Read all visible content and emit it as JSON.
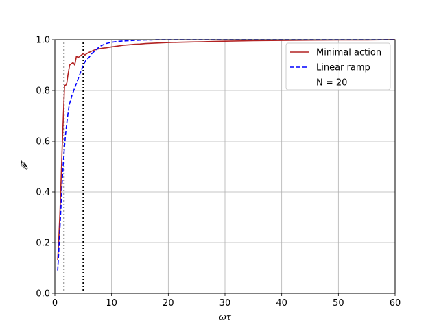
{
  "chart_data": {
    "type": "line",
    "xlabel": "ωτ",
    "ylabel": "𝓕",
    "xlim": [
      0,
      60
    ],
    "ylim": [
      0,
      1.0
    ],
    "xticks": [
      0,
      10,
      20,
      30,
      40,
      50,
      60
    ],
    "yticks": [
      0.0,
      0.2,
      0.4,
      0.6,
      0.8,
      1.0
    ],
    "xtick_labels": [
      "0",
      "10",
      "20",
      "30",
      "40",
      "50",
      "60"
    ],
    "ytick_labels": [
      "0.0",
      "0.2",
      "0.4",
      "0.6",
      "0.8",
      "1.0"
    ],
    "grid": true,
    "legend_placement": "upper right",
    "legend": {
      "entries": [
        "Minimal action",
        "Linear ramp",
        "N = 20"
      ]
    },
    "series": [
      {
        "name": "Minimal action",
        "color": "#b22222",
        "style": "solid",
        "x": [
          0.5,
          0.7,
          0.9,
          1.1,
          1.3,
          1.5,
          1.7,
          1.9,
          2.1,
          2.3,
          2.6,
          2.9,
          3.2,
          3.5,
          3.8,
          4.1,
          4.4,
          4.7,
          5.0,
          5.3,
          5.6,
          6.0,
          6.5,
          7.0,
          7.5,
          8.0,
          8.5,
          9.0,
          9.5,
          10,
          11,
          12,
          13,
          14,
          15,
          16,
          17,
          18,
          20,
          22,
          24,
          26,
          28,
          30,
          35,
          40,
          45,
          50,
          55,
          60
        ],
        "y": [
          0.13,
          0.22,
          0.32,
          0.45,
          0.58,
          0.7,
          0.82,
          0.82,
          0.83,
          0.86,
          0.9,
          0.905,
          0.91,
          0.9,
          0.935,
          0.93,
          0.935,
          0.94,
          0.945,
          0.94,
          0.945,
          0.95,
          0.955,
          0.96,
          0.963,
          0.965,
          0.967,
          0.968,
          0.97,
          0.972,
          0.975,
          0.978,
          0.98,
          0.982,
          0.983,
          0.985,
          0.986,
          0.987,
          0.989,
          0.99,
          0.991,
          0.992,
          0.993,
          0.994,
          0.996,
          0.997,
          0.998,
          0.999,
          0.999,
          1.0
        ]
      },
      {
        "name": "Linear ramp",
        "color": "#0000ff",
        "style": "dashed",
        "x": [
          0.5,
          0.7,
          0.9,
          1.1,
          1.3,
          1.5,
          1.7,
          1.9,
          2.2,
          2.5,
          3.0,
          3.5,
          4.0,
          4.5,
          5.0,
          5.5,
          6.0,
          6.5,
          7.0,
          7.5,
          8.0,
          8.5,
          9.0,
          10,
          11,
          12,
          13,
          14,
          15,
          16,
          17,
          18,
          20,
          25,
          30,
          40,
          50,
          60
        ],
        "y": [
          0.09,
          0.17,
          0.26,
          0.35,
          0.44,
          0.52,
          0.58,
          0.63,
          0.69,
          0.74,
          0.78,
          0.81,
          0.84,
          0.87,
          0.9,
          0.92,
          0.93,
          0.945,
          0.955,
          0.965,
          0.975,
          0.98,
          0.985,
          0.99,
          0.993,
          0.995,
          0.996,
          0.997,
          0.998,
          0.999,
          0.999,
          1.0,
          1.0,
          1.0,
          1.0,
          1.0,
          1.0,
          1.0
        ]
      }
    ],
    "vlines": [
      {
        "x": 1.6,
        "color": "#8c8c8c",
        "style": "dotted"
      },
      {
        "x": 5.0,
        "color": "#000000",
        "style": "dotted"
      }
    ]
  }
}
